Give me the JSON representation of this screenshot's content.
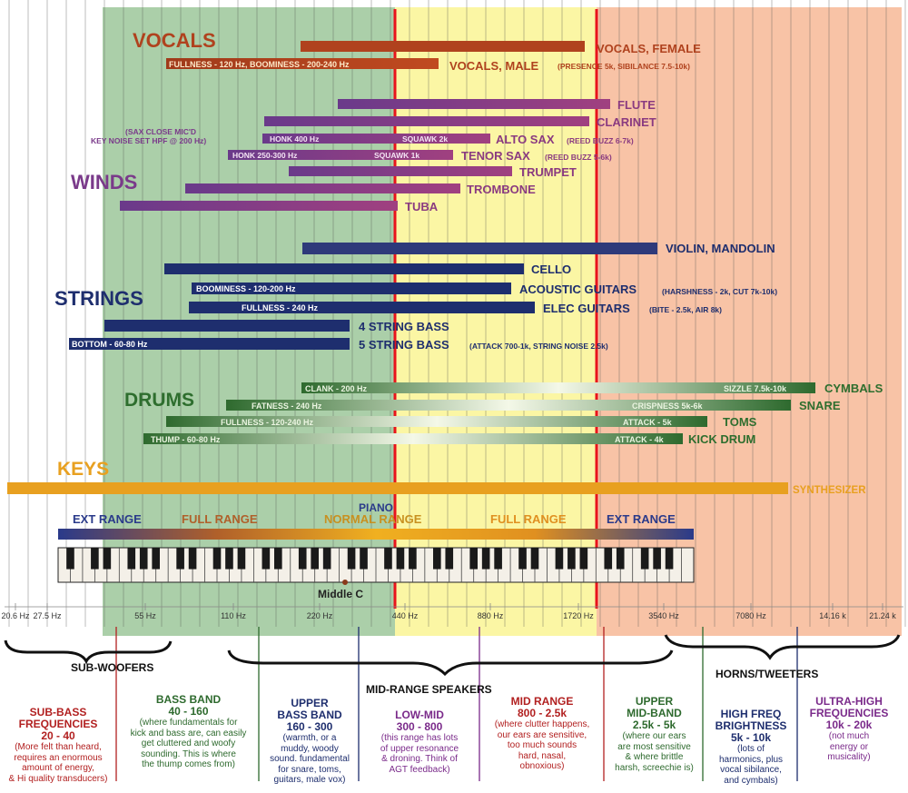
{
  "colors": {
    "zone_green": "#9cc79a",
    "zone_yellow": "#fbf59a",
    "zone_orange": "#f7b896",
    "divider_red": "#e8141c",
    "vocals": "#b0421e",
    "winds": "#7a3a8a",
    "strings": "#1e2e6e",
    "drums": "#2e6e2e",
    "keys": "#e8a020",
    "piano": "#2a3a8a"
  },
  "freq_labels": [
    "20.6 Hz",
    "27.5 Hz",
    "55 Hz",
    "110 Hz",
    "220 Hz",
    "440 Hz",
    "880 Hz",
    "1720 Hz",
    "3540 Hz",
    "7080 Hz",
    "14.16 k",
    "21.24 k"
  ],
  "sections": {
    "vocals": "VOCALS",
    "winds": "WINDS",
    "strings": "STRINGS",
    "drums": "DRUMS",
    "keys": "KEYS"
  },
  "bars": {
    "vocals_female_name": "VOCALS, FEMALE",
    "vocals_male_name": "VOCALS, MALE",
    "vocals_male_detail": "(PRESENCE 5k, SIBILANCE 7.5-10k)",
    "vocals_male_label": "FULLNESS - 120 Hz, BOOMINESS - 200-240 Hz",
    "flute": "FLUTE",
    "clarinet": "CLARINET",
    "sax_note_1": "(SAX CLOSE MIC'D",
    "sax_note_2": "KEY NOISE SET HPF @ 200 Hz)",
    "alto_name": "ALTO SAX",
    "alto_detail": "(REED BUZZ 6-7k)",
    "alto_honk": "HONK 400 Hz",
    "alto_squawk": "SQUAWK  2k",
    "tenor_name": "TENOR SAX",
    "tenor_detail": "(REED BUZZ 5-6k)",
    "tenor_honk": "HONK 250-300 Hz",
    "tenor_squawk": "SQUAWK  1k",
    "trumpet": "TRUMPET",
    "trombone": "TROMBONE",
    "tuba": "TUBA",
    "violin": "VIOLIN, MANDOLIN",
    "cello": "CELLO",
    "acoustic_name": "ACOUSTIC GUITARS",
    "acoustic_detail": "(HARSHNESS - 2k, CUT 7k-10k)",
    "acoustic_label": "BOOMINESS - 120-200 Hz",
    "elec_name": "ELEC GUITARS",
    "elec_detail": "(BITE - 2.5k, AIR 8k)",
    "elec_label": "FULLNESS - 240 Hz",
    "bass4": "4 STRING BASS",
    "bass5_name": "5 STRING BASS",
    "bass5_detail": "(ATTACK 700-1k, STRING NOISE 2.5k)",
    "bass5_label": "BOTTOM - 60-80 Hz",
    "cymbals": "CYMBALS",
    "cymbals_low": "CLANK - 200 Hz",
    "cymbals_high": "SIZZLE 7.5k-10k",
    "snare": "SNARE",
    "snare_low": "FATNESS - 240 Hz",
    "snare_high": "CRISPNESS 5k-6k",
    "toms": "TOMS",
    "toms_low": "FULLNESS - 120-240 Hz",
    "toms_high": "ATTACK - 5k",
    "kick": "KICK DRUM",
    "kick_low": "THUMP - 60-80 Hz",
    "kick_high": "ATTACK - 4k",
    "synth": "SYNTHESIZER"
  },
  "piano": {
    "title": "PIANO",
    "ext_left": "EXT RANGE",
    "full_left": "FULL RANGE",
    "normal": "NORMAL RANGE",
    "full_right": "FULL RANGE",
    "ext_right": "EXT RANGE",
    "middle_c": "Middle C"
  },
  "speakers": {
    "sub": "SUB-WOOFERS",
    "mid": "MID-RANGE SPEAKERS",
    "horns": "HORNS/TWEETERS"
  },
  "bands": [
    {
      "title": [
        "SUB-BASS",
        "FREQUENCIES",
        "20 - 40"
      ],
      "body": [
        "(More felt than heard,",
        "requires an enormous",
        "amount of energy,",
        "& Hi quality transducers)"
      ],
      "color": "#b22020"
    },
    {
      "title": [
        "BASS BAND",
        "40 - 160"
      ],
      "body": [
        "(where fundamentals for",
        "kick and bass are, can easily",
        "get cluttered and woofy",
        "sounding. This is where",
        "the thump comes from)"
      ],
      "color": "#2e6a2e"
    },
    {
      "title": [
        "UPPER",
        "BASS BAND",
        "160 - 300"
      ],
      "body": [
        "(warmth, or a",
        "muddy, woody",
        "sound. fundamental",
        "for snare, toms,",
        "guitars, male vox)"
      ],
      "color": "#1e2e6e"
    },
    {
      "title": [
        "LOW-MID",
        "300 - 800"
      ],
      "body": [
        "(this range has lots",
        "of upper resonance",
        "& droning. Think of",
        "AGT feedback)"
      ],
      "color": "#7a2a8a"
    },
    {
      "title": [
        "MID RANGE",
        "800 - 2.5k"
      ],
      "body": [
        "(where clutter happens,",
        "our ears are sensitive,",
        "too much sounds",
        "hard, nasal,",
        "obnoxious)"
      ],
      "color": "#b22020"
    },
    {
      "title": [
        "UPPER",
        "MID-BAND",
        "2.5k - 5k"
      ],
      "body": [
        "(where our ears",
        "are most sensitive",
        "& where brittle",
        "harsh, screechie is)"
      ],
      "color": "#2e6a2e"
    },
    {
      "title": [
        "HIGH FREQ",
        "BRIGHTNESS",
        "5k - 10k"
      ],
      "body": [
        "(lots of",
        "harmonics, plus",
        "vocal sibilance,",
        "and cymbals)"
      ],
      "color": "#1e2e6e"
    },
    {
      "title": [
        "ULTRA-HIGH",
        "FREQUENCIES",
        "10k - 20k"
      ],
      "body": [
        "(not much",
        "energy or",
        "musicality)"
      ],
      "color": "#7a2a8a"
    }
  ]
}
